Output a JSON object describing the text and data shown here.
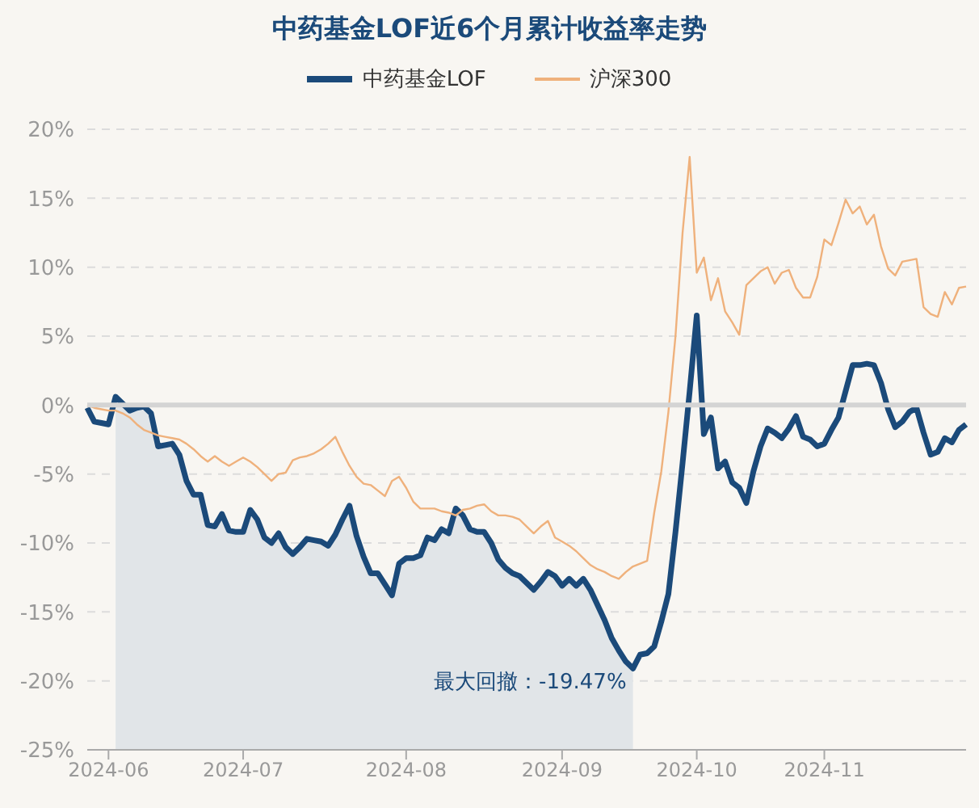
{
  "chart_data": {
    "type": "line",
    "title": "中药基金LOF近6个月累计收益率走势",
    "categories": [
      null,
      null,
      null,
      "2024-06",
      null,
      null,
      null,
      null,
      null,
      null,
      null,
      null,
      null,
      null,
      null,
      null,
      null,
      null,
      null,
      null,
      null,
      null,
      "2024-07",
      null,
      null,
      null,
      null,
      null,
      null,
      null,
      null,
      null,
      null,
      null,
      null,
      null,
      null,
      null,
      null,
      null,
      null,
      null,
      null,
      null,
      null,
      "2024-08",
      null,
      null,
      null,
      null,
      null,
      null,
      null,
      null,
      null,
      null,
      null,
      null,
      null,
      null,
      null,
      null,
      null,
      null,
      null,
      null,
      null,
      "2024-09",
      null,
      null,
      null,
      null,
      null,
      null,
      null,
      null,
      null,
      null,
      null,
      null,
      null,
      null,
      null,
      null,
      null,
      null,
      "2024-10",
      null,
      null,
      null,
      null,
      null,
      null,
      null,
      null,
      null,
      null,
      null,
      null,
      null,
      null,
      null,
      null,
      null,
      "2024-11",
      null,
      null,
      null,
      null,
      null,
      null,
      null,
      null,
      null,
      null,
      null,
      null,
      null,
      null,
      null,
      null,
      null,
      null,
      null,
      null
    ],
    "series": [
      {
        "name": "中药基金LOF",
        "color": "#1b4a7a",
        "values": [
          -0.2,
          -1.2,
          -1.3,
          -1.4,
          0.6,
          0.1,
          -0.4,
          -0.2,
          -0.1,
          -0.6,
          -3.0,
          -2.9,
          -2.8,
          -3.6,
          -5.5,
          -6.5,
          -6.5,
          -8.7,
          -8.8,
          -7.9,
          -9.1,
          -9.2,
          -9.2,
          -7.6,
          -8.3,
          -9.6,
          -10.0,
          -9.3,
          -10.3,
          -10.8,
          -10.3,
          -9.7,
          -9.8,
          -9.9,
          -10.2,
          -9.4,
          -8.3,
          -7.3,
          -9.5,
          -11.0,
          -12.2,
          -12.2,
          -13.0,
          -13.8,
          -11.5,
          -11.1,
          -11.1,
          -10.9,
          -9.6,
          -9.8,
          -9.0,
          -9.3,
          -7.5,
          -8.0,
          -9.0,
          -9.2,
          -9.2,
          -10.0,
          -11.2,
          -11.8,
          -12.2,
          -12.4,
          -12.9,
          -13.4,
          -12.8,
          -12.1,
          -12.4,
          -13.1,
          -12.6,
          -13.1,
          -12.6,
          -13.4,
          -14.5,
          -15.6,
          -16.9,
          -17.8,
          -18.6,
          -19.1,
          -18.1,
          -18.0,
          -17.5,
          -15.7,
          -13.7,
          -9.2,
          -4.2,
          1.0,
          6.5,
          -2.1,
          -0.9,
          -4.6,
          -4.1,
          -5.6,
          -6.0,
          -7.1,
          -4.8,
          -3.0,
          -1.7,
          -2.0,
          -2.4,
          -1.7,
          -0.8,
          -2.3,
          -2.5,
          -3.0,
          -2.8,
          -1.8,
          -0.9,
          1.0,
          2.9,
          2.9,
          3.0,
          2.9,
          1.6,
          -0.3,
          -1.6,
          -1.2,
          -0.5,
          -0.2,
          -2.0,
          -3.6,
          -3.4,
          -2.4,
          -2.7,
          -1.8,
          -1.4
        ],
        "upper": [
          null,
          null,
          null,
          null,
          0.6,
          0.1,
          -0.4,
          -0.2,
          -0.1,
          -0.6,
          -3.0,
          -2.9,
          -2.8,
          -3.6,
          -5.5,
          -6.5,
          -6.5,
          -8.7,
          -8.8,
          -7.9,
          -9.1,
          -9.2,
          -9.2,
          -7.6,
          -8.3,
          -9.6,
          -10.0,
          -9.3,
          -10.3,
          -10.8,
          -10.3,
          -9.7,
          -9.8,
          -9.9,
          -10.2,
          -9.4,
          -8.3,
          -7.3,
          -9.5,
          -11.0,
          -12.2,
          -12.2,
          -13.0,
          -13.8,
          -11.5,
          -11.1,
          -11.1,
          -10.9,
          -9.6,
          -9.8,
          -9.0,
          -9.3,
          -7.5,
          -8.0,
          -9.0,
          -9.2,
          -9.2,
          -10.0,
          -11.2,
          -11.8,
          -12.2,
          -12.4,
          -12.9,
          -13.4,
          -12.8,
          -12.1,
          -12.4,
          -13.1,
          -12.6,
          -13.1,
          -12.6,
          -13.4,
          -14.5,
          -15.6,
          -16.9,
          -17.8,
          -18.6,
          -19.1,
          null,
          null,
          null,
          null,
          null,
          null,
          null,
          null,
          null,
          null,
          null,
          null,
          null,
          null,
          null,
          null,
          null,
          null,
          null,
          null,
          null,
          null,
          null,
          null,
          null,
          null,
          null,
          null,
          null,
          null,
          null,
          null,
          null,
          null,
          null,
          null,
          null,
          null,
          null,
          null,
          null,
          null,
          null,
          null,
          null,
          null,
          null
        ],
        "lower": [
          null,
          null,
          null,
          null,
          -25,
          -25,
          -25,
          -25,
          -25,
          -25,
          -25,
          -25,
          -25,
          -25,
          -25,
          -25,
          -25,
          -25,
          -25,
          -25,
          -25,
          -25,
          -25,
          -25,
          -25,
          -25,
          -25,
          -25,
          -25,
          -25,
          -25,
          -25,
          -25,
          -25,
          -25,
          -25,
          -25,
          -25,
          -25,
          -25,
          -25,
          -25,
          -25,
          -25,
          -25,
          -25,
          -25,
          -25,
          -25,
          -25,
          -25,
          -25,
          -25,
          -25,
          -25,
          -25,
          -25,
          -25,
          -25,
          -25,
          -25,
          -25,
          -25,
          -25,
          -25,
          -25,
          -25,
          -25,
          -25,
          -25,
          -25,
          -25,
          -25,
          -25,
          -25,
          -25,
          -25,
          -25,
          null,
          null,
          null,
          null,
          null,
          null,
          null,
          null,
          null,
          null,
          null,
          null,
          null,
          null,
          null,
          null,
          null,
          null,
          null,
          null,
          null,
          null,
          null,
          null,
          null,
          null,
          null,
          null,
          null,
          null,
          null,
          null,
          null,
          null,
          null,
          null,
          null,
          null,
          null,
          null,
          null,
          null,
          null,
          null,
          null,
          null,
          null
        ]
      },
      {
        "name": "沪深300",
        "color": "#efb17c",
        "values": [
          0,
          -0.2,
          -0.3,
          -0.4,
          -0.4,
          -0.6,
          -0.9,
          -1.4,
          -1.8,
          -2.0,
          -2.2,
          -2.3,
          -2.4,
          -2.5,
          -2.8,
          -3.2,
          -3.7,
          -4.1,
          -3.7,
          -4.1,
          -4.4,
          -4.1,
          -3.8,
          -4.1,
          -4.5,
          -5.0,
          -5.5,
          -5.0,
          -4.9,
          -4.0,
          -3.8,
          -3.7,
          -3.5,
          -3.2,
          -2.8,
          -2.3,
          -3.4,
          -4.4,
          -5.2,
          -5.7,
          -5.8,
          -6.2,
          -6.6,
          -5.5,
          -5.2,
          -6.0,
          -7.0,
          -7.5,
          -7.5,
          -7.5,
          -7.7,
          -7.8,
          -8.0,
          -7.6,
          -7.5,
          -7.3,
          -7.2,
          -7.7,
          -8.0,
          -8.0,
          -8.1,
          -8.3,
          -8.8,
          -9.3,
          -8.8,
          -8.4,
          -9.6,
          -9.9,
          -10.2,
          -10.6,
          -11.1,
          -11.6,
          -11.9,
          -12.1,
          -12.4,
          -12.6,
          -12.1,
          -11.7,
          -11.5,
          -11.3,
          -7.8,
          -4.8,
          -0.5,
          5.0,
          12.5,
          18.0,
          9.6,
          10.7,
          7.6,
          9.2,
          6.8,
          6.0,
          5.1,
          8.7,
          9.2,
          9.7,
          10.0,
          8.8,
          9.6,
          9.8,
          8.5,
          7.8,
          7.8,
          9.3,
          12.0,
          11.6,
          13.2,
          14.9,
          13.9,
          14.4,
          13.1,
          13.8,
          11.5,
          9.9,
          9.4,
          10.4,
          10.5,
          10.6,
          7.1,
          6.6,
          6.4,
          8.2,
          7.3,
          8.5,
          8.6
        ]
      }
    ],
    "ylim": [
      -25,
      20
    ],
    "yticks": [
      {
        "value": -25,
        "label": "-25%"
      },
      {
        "value": -20,
        "label": "-20%"
      },
      {
        "value": -15,
        "label": "-15%"
      },
      {
        "value": -10,
        "label": "-10%"
      },
      {
        "value": -5,
        "label": "-5%"
      },
      {
        "value": 0,
        "label": "0%"
      },
      {
        "value": 5,
        "label": "5%"
      },
      {
        "value": 10,
        "label": "10%"
      },
      {
        "value": 15,
        "label": "15%"
      },
      {
        "value": 20,
        "label": "20%"
      }
    ],
    "ref_lines": [
      {
        "axis": "y",
        "value": 0,
        "color": "#d4d4d4"
      }
    ],
    "annotations": [
      "最大回撤：-19.47%"
    ],
    "grid": "y",
    "legend": "top",
    "marker": "none",
    "line_style": "solid"
  }
}
